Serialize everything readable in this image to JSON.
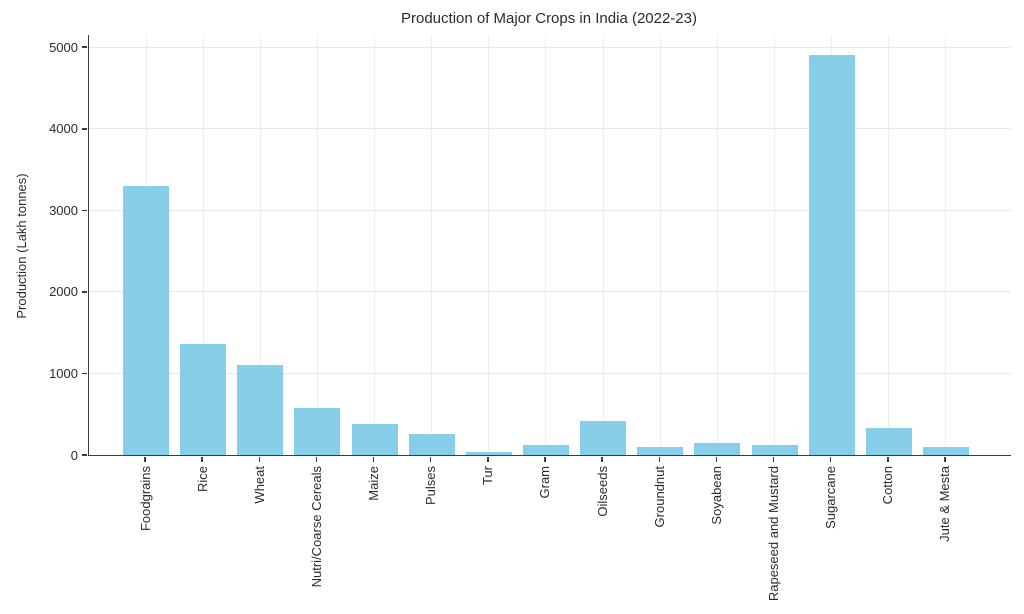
{
  "chart_data": {
    "type": "bar",
    "title": "Production of Major Crops in India (2022-23)",
    "xlabel": "",
    "ylabel": "Production (Lakh tonnes)",
    "categories": [
      "Foodgrains",
      "Rice",
      "Wheat",
      "Nutri/Coarse Cereals",
      "Maize",
      "Pulses",
      "Tur",
      "Gram",
      "Oilseeds",
      "Groundnut",
      "Soyabean",
      "Rapeseed and Mustard",
      "Sugarcane",
      "Cotton",
      "Jute & Mesta"
    ],
    "values": [
      3296.87,
      1357.55,
      1105.54,
      573.19,
      380.85,
      260.58,
      33.12,
      122.67,
      413.55,
      102.97,
      149.85,
      126.43,
      4905.33,
      336.6,
      93.92
    ],
    "yticks": [
      0,
      1000,
      2000,
      3000,
      4000,
      5000
    ],
    "ylim": [
      0,
      5150
    ],
    "grid": true,
    "legend": "none",
    "bar_color": "#87CEEB",
    "gridline_color": "#e8e8e8",
    "axis_color": "#3c3c3c",
    "text_color": "#2b2b2b",
    "background_color": "#ffffff"
  }
}
